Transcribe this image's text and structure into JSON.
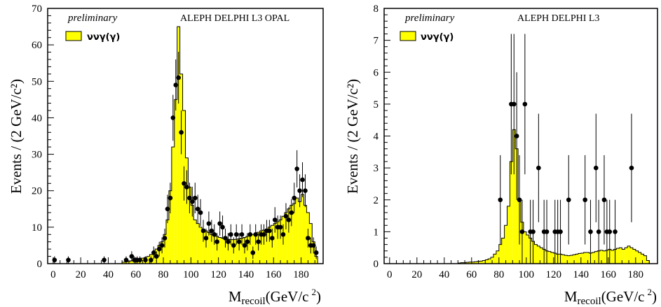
{
  "colors": {
    "mc_fill": "#ffff00",
    "mc_line": "#000000",
    "marker": "#000000"
  },
  "chart_data": [
    {
      "type": "bar",
      "preliminary": "preliminary",
      "experiments": "ALEPH DELPHI L3 OPAL",
      "legend": "ννγ(γ)",
      "ylabel": "Events / (2 GeV/c²)",
      "xlabel": {
        "main": "M",
        "sub": "recoil",
        "unit": "(GeV/c",
        "sup": "2",
        "close": ")"
      },
      "xlim": [
        -4,
        196
      ],
      "ylim": [
        0,
        70
      ],
      "xticks": [
        0,
        20,
        40,
        60,
        80,
        100,
        120,
        140,
        160,
        180
      ],
      "yticks": [
        0,
        10,
        20,
        30,
        40,
        50,
        60,
        70
      ],
      "xticklabels": [
        "0",
        "20",
        "40",
        "60",
        "80",
        "100",
        "120",
        "140",
        "160",
        "180"
      ],
      "yticklabels": [
        "0",
        "10",
        "20",
        "30",
        "40",
        "50",
        "60",
        "70"
      ],
      "mc_bins": [
        [
          50,
          0.4
        ],
        [
          52,
          0.5
        ],
        [
          54,
          0.6
        ],
        [
          56,
          0.8
        ],
        [
          58,
          0.9
        ],
        [
          60,
          1
        ],
        [
          62,
          1.2
        ],
        [
          64,
          1.5
        ],
        [
          66,
          1.7
        ],
        [
          68,
          2
        ],
        [
          70,
          2.5
        ],
        [
          72,
          3
        ],
        [
          74,
          4
        ],
        [
          76,
          5
        ],
        [
          78,
          6
        ],
        [
          80,
          8
        ],
        [
          82,
          12
        ],
        [
          84,
          20
        ],
        [
          86,
          32
        ],
        [
          88,
          45
        ],
        [
          90,
          65
        ],
        [
          92,
          52
        ],
        [
          94,
          42
        ],
        [
          96,
          29
        ],
        [
          98,
          21
        ],
        [
          100,
          16
        ],
        [
          102,
          12
        ],
        [
          104,
          11
        ],
        [
          106,
          10
        ],
        [
          108,
          9.5
        ],
        [
          110,
          9
        ],
        [
          112,
          8.5
        ],
        [
          114,
          8
        ],
        [
          116,
          7.8
        ],
        [
          118,
          7.5
        ],
        [
          120,
          7.2
        ],
        [
          122,
          7
        ],
        [
          124,
          6.8
        ],
        [
          126,
          6.7
        ],
        [
          128,
          6.6
        ],
        [
          130,
          6.6
        ],
        [
          132,
          6.7
        ],
        [
          134,
          6.8
        ],
        [
          136,
          7
        ],
        [
          138,
          7.2
        ],
        [
          140,
          7.5
        ],
        [
          142,
          7.8
        ],
        [
          144,
          8
        ],
        [
          146,
          8.3
        ],
        [
          148,
          8.6
        ],
        [
          150,
          9
        ],
        [
          152,
          9.2
        ],
        [
          154,
          9.5
        ],
        [
          156,
          10
        ],
        [
          158,
          10.5
        ],
        [
          160,
          11
        ],
        [
          162,
          11.5
        ],
        [
          164,
          12
        ],
        [
          166,
          13
        ],
        [
          168,
          14
        ],
        [
          170,
          15
        ],
        [
          172,
          16
        ],
        [
          174,
          16.5
        ],
        [
          176,
          18
        ],
        [
          178,
          17
        ],
        [
          180,
          19
        ],
        [
          182,
          16
        ],
        [
          184,
          14
        ],
        [
          186,
          11
        ],
        [
          188,
          6
        ],
        [
          190,
          2
        ]
      ],
      "points": [
        [
          1,
          1,
          1
        ],
        [
          11,
          1,
          1
        ],
        [
          37,
          1,
          1
        ],
        [
          53,
          1,
          1
        ],
        [
          57,
          2,
          1.4
        ],
        [
          59,
          1,
          1
        ],
        [
          61,
          1,
          1
        ],
        [
          63,
          1,
          1
        ],
        [
          67,
          1,
          1
        ],
        [
          71,
          1,
          1
        ],
        [
          73,
          3,
          1.7
        ],
        [
          75,
          2,
          1.4
        ],
        [
          77,
          4,
          2
        ],
        [
          79,
          5,
          2.2
        ],
        [
          81,
          7,
          2.6
        ],
        [
          83,
          15,
          3.9
        ],
        [
          85,
          18,
          4.2
        ],
        [
          87,
          40,
          6.3
        ],
        [
          89,
          49,
          7
        ],
        [
          91,
          51,
          7.1
        ],
        [
          93,
          36,
          6
        ],
        [
          95,
          22,
          4.7
        ],
        [
          97,
          21,
          4.6
        ],
        [
          99,
          18,
          4.2
        ],
        [
          101,
          17,
          4.1
        ],
        [
          103,
          18,
          4.2
        ],
        [
          105,
          15,
          3.9
        ],
        [
          107,
          14,
          3.7
        ],
        [
          109,
          9,
          3
        ],
        [
          111,
          7,
          2.6
        ],
        [
          113,
          11,
          3.3
        ],
        [
          115,
          9,
          3
        ],
        [
          117,
          8,
          2.8
        ],
        [
          119,
          6,
          2.4
        ],
        [
          121,
          11,
          3.3
        ],
        [
          123,
          10,
          3.2
        ],
        [
          125,
          7,
          2.6
        ],
        [
          127,
          6,
          2.4
        ],
        [
          129,
          8,
          2.8
        ],
        [
          131,
          5,
          2.2
        ],
        [
          133,
          8,
          2.8
        ],
        [
          135,
          6,
          2.4
        ],
        [
          137,
          8,
          2.8
        ],
        [
          139,
          5,
          2.2
        ],
        [
          141,
          6,
          2.4
        ],
        [
          143,
          8,
          2.8
        ],
        [
          145,
          3,
          1.7
        ],
        [
          147,
          8,
          2.8
        ],
        [
          149,
          6,
          2.4
        ],
        [
          151,
          8,
          2.8
        ],
        [
          153,
          8,
          2.8
        ],
        [
          155,
          9,
          3
        ],
        [
          157,
          9,
          3
        ],
        [
          159,
          7,
          2.6
        ],
        [
          161,
          12,
          3.5
        ],
        [
          163,
          10,
          3.2
        ],
        [
          165,
          10,
          3.2
        ],
        [
          167,
          8,
          2.8
        ],
        [
          169,
          13,
          3.6
        ],
        [
          171,
          12,
          3.5
        ],
        [
          173,
          14,
          3.7
        ],
        [
          175,
          18,
          4.2
        ],
        [
          177,
          26,
          5.1
        ],
        [
          179,
          20,
          4.5
        ],
        [
          181,
          23,
          4.8
        ],
        [
          183,
          20,
          4.5
        ],
        [
          185,
          7,
          2.6
        ],
        [
          187,
          5,
          2.2
        ],
        [
          189,
          5,
          2.2
        ],
        [
          191,
          3,
          1.7
        ]
      ]
    },
    {
      "type": "bar",
      "preliminary": "preliminary",
      "experiments": "ALEPH DELPHI L3",
      "legend": "ννγ(γ)",
      "ylabel": "Events / (2 GeV/c²)",
      "xlabel": {
        "main": "M",
        "sub": "recoil",
        "unit": "(GeV/c",
        "sup": "2",
        "close": ")"
      },
      "xlim": [
        -4,
        196
      ],
      "ylim": [
        0,
        8
      ],
      "xticks": [
        0,
        20,
        40,
        60,
        80,
        100,
        120,
        140,
        160,
        180
      ],
      "yticks": [
        0,
        1,
        2,
        3,
        4,
        5,
        6,
        7,
        8
      ],
      "xticklabels": [
        "0",
        "20",
        "40",
        "60",
        "80",
        "100",
        "120",
        "140",
        "160",
        "180"
      ],
      "yticklabels": [
        "0",
        "1",
        "2",
        "3",
        "4",
        "5",
        "6",
        "7",
        "8"
      ],
      "mc_bins": [
        [
          50,
          0.02
        ],
        [
          52,
          0.03
        ],
        [
          54,
          0.03
        ],
        [
          56,
          0.04
        ],
        [
          58,
          0.05
        ],
        [
          60,
          0.05
        ],
        [
          62,
          0.06
        ],
        [
          64,
          0.07
        ],
        [
          66,
          0.08
        ],
        [
          68,
          0.1
        ],
        [
          70,
          0.12
        ],
        [
          72,
          0.15
        ],
        [
          74,
          0.2
        ],
        [
          76,
          0.3
        ],
        [
          78,
          0.4
        ],
        [
          80,
          0.6
        ],
        [
          82,
          0.8
        ],
        [
          84,
          1.2
        ],
        [
          86,
          1.8
        ],
        [
          88,
          3.2
        ],
        [
          90,
          4.2
        ],
        [
          92,
          3.6
        ],
        [
          94,
          2.0
        ],
        [
          96,
          1.3
        ],
        [
          98,
          1.0
        ],
        [
          100,
          0.9
        ],
        [
          102,
          0.8
        ],
        [
          104,
          0.7
        ],
        [
          106,
          0.6
        ],
        [
          108,
          0.55
        ],
        [
          110,
          0.5
        ],
        [
          112,
          0.45
        ],
        [
          114,
          0.4
        ],
        [
          116,
          0.38
        ],
        [
          118,
          0.35
        ],
        [
          120,
          0.33
        ],
        [
          122,
          0.3
        ],
        [
          124,
          0.3
        ],
        [
          126,
          0.28
        ],
        [
          128,
          0.26
        ],
        [
          130,
          0.25
        ],
        [
          132,
          0.26
        ],
        [
          134,
          0.28
        ],
        [
          136,
          0.3
        ],
        [
          138,
          0.32
        ],
        [
          140,
          0.33
        ],
        [
          142,
          0.35
        ],
        [
          144,
          0.35
        ],
        [
          146,
          0.33
        ],
        [
          148,
          0.35
        ],
        [
          150,
          0.38
        ],
        [
          152,
          0.4
        ],
        [
          154,
          0.42
        ],
        [
          156,
          0.4
        ],
        [
          158,
          0.42
        ],
        [
          160,
          0.45
        ],
        [
          162,
          0.42
        ],
        [
          164,
          0.45
        ],
        [
          166,
          0.48
        ],
        [
          168,
          0.5
        ],
        [
          170,
          0.45
        ],
        [
          172,
          0.5
        ],
        [
          174,
          0.55
        ],
        [
          176,
          0.5
        ],
        [
          178,
          0.45
        ],
        [
          180,
          0.4
        ],
        [
          182,
          0.35
        ],
        [
          184,
          0.3
        ],
        [
          186,
          0.25
        ],
        [
          188,
          0.1
        ]
      ],
      "points": [
        [
          81,
          2,
          1.4
        ],
        [
          89,
          5,
          2.2
        ],
        [
          91,
          5,
          2.2
        ],
        [
          93,
          4,
          2
        ],
        [
          95,
          2,
          1.4
        ],
        [
          97,
          1,
          1
        ],
        [
          99,
          5,
          2.2
        ],
        [
          103,
          1,
          1
        ],
        [
          105,
          1,
          1
        ],
        [
          109,
          3,
          1.7
        ],
        [
          113,
          1,
          1
        ],
        [
          115,
          1,
          1
        ],
        [
          121,
          1,
          1
        ],
        [
          123,
          1,
          1
        ],
        [
          125,
          1,
          1
        ],
        [
          131,
          2,
          1.4
        ],
        [
          143,
          2,
          1.4
        ],
        [
          147,
          1,
          1
        ],
        [
          151,
          3,
          1.7
        ],
        [
          153,
          1,
          1
        ],
        [
          157,
          2,
          1.4
        ],
        [
          159,
          1,
          1
        ],
        [
          161,
          1,
          1
        ],
        [
          165,
          1,
          1
        ],
        [
          177,
          3,
          1.7
        ]
      ]
    }
  ]
}
